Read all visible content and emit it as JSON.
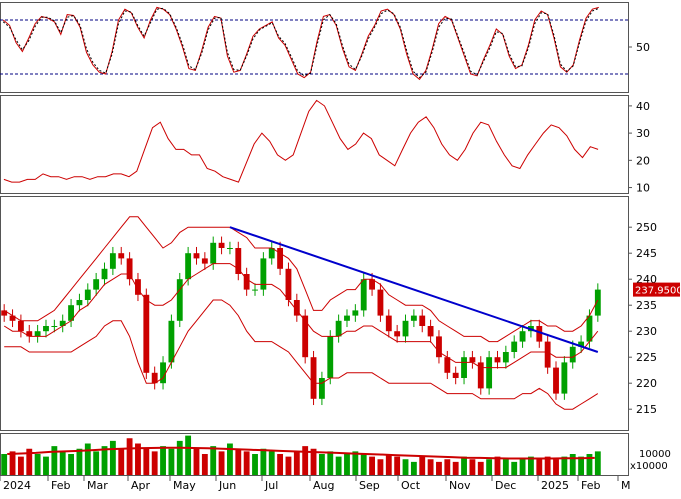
{
  "chart_data": [
    {
      "type": "line",
      "panel": "stochastic",
      "y_ticks": [
        50
      ],
      "ylim": [
        0,
        100
      ],
      "reference_lines": [
        80,
        20
      ],
      "series": [
        {
          "values": [
            80,
            74,
            55,
            45,
            60,
            76,
            84,
            82,
            78,
            64,
            86,
            85,
            72,
            44,
            30,
            22,
            20,
            45,
            80,
            92,
            88,
            72,
            60,
            80,
            94,
            92,
            86,
            70,
            50,
            26,
            24,
            46,
            72,
            84,
            82,
            40,
            22,
            24,
            42,
            62,
            70,
            74,
            78,
            60,
            52,
            36,
            20,
            16,
            22,
            56,
            84,
            86,
            74,
            48,
            28,
            24,
            42,
            62,
            74,
            90,
            92,
            86,
            70,
            42,
            20,
            14,
            24,
            48,
            76,
            84,
            80,
            60,
            40,
            20,
            18,
            36,
            52,
            70,
            64,
            40,
            26,
            30,
            52,
            80,
            90,
            86,
            60,
            28,
            22,
            30,
            58,
            82,
            92,
            94
          ]
        },
        {
          "values": [
            78,
            72,
            58,
            47,
            57,
            73,
            83,
            83,
            79,
            66,
            83,
            85,
            74,
            48,
            33,
            24,
            21,
            42,
            76,
            90,
            89,
            74,
            62,
            77,
            92,
            93,
            87,
            72,
            53,
            29,
            25,
            43,
            69,
            82,
            83,
            44,
            25,
            24,
            40,
            59,
            69,
            73,
            77,
            62,
            54,
            39,
            23,
            18,
            21,
            52,
            80,
            86,
            76,
            51,
            31,
            25,
            40,
            59,
            72,
            87,
            91,
            87,
            72,
            46,
            23,
            16,
            22,
            45,
            72,
            82,
            81,
            62,
            43,
            23,
            19,
            34,
            49,
            67,
            65,
            43,
            28,
            29,
            49,
            76,
            88,
            87,
            63,
            31,
            23,
            29,
            55,
            79,
            90,
            93
          ]
        }
      ],
      "colors": {
        "line": "#cc0000",
        "signal": "#cc0000",
        "reference": "#000080"
      }
    },
    {
      "type": "line",
      "panel": "adx",
      "y_ticks": [
        10,
        20,
        30,
        40
      ],
      "ylim": [
        8,
        44
      ],
      "series": [
        {
          "values": [
            13,
            12,
            12,
            13,
            13,
            15,
            14,
            14,
            13,
            14,
            14,
            13,
            14,
            14,
            15,
            15,
            14,
            16,
            24,
            32,
            34,
            28,
            24,
            24,
            22,
            22,
            17,
            16,
            14,
            13,
            12,
            19,
            26,
            30,
            27,
            22,
            20,
            22,
            30,
            38,
            42,
            40,
            34,
            28,
            24,
            26,
            30,
            28,
            22,
            20,
            18,
            24,
            30,
            34,
            36,
            32,
            26,
            22,
            20,
            24,
            30,
            34,
            33,
            27,
            22,
            18,
            17,
            22,
            26,
            30,
            33,
            32,
            29,
            24,
            21,
            25,
            24
          ]
        }
      ],
      "colors": {
        "line": "#cc0000"
      }
    },
    {
      "type": "candlestick",
      "panel": "price",
      "x_ticks": [
        "2024",
        "Feb",
        "Mar",
        "Apr",
        "May",
        "Jun",
        "Jul",
        "Aug",
        "Sep",
        "Oct",
        "Nov",
        "Dec",
        "2025",
        "Feb",
        "M"
      ],
      "y_ticks": [
        215,
        220,
        225,
        230,
        235,
        240,
        245,
        250
      ],
      "ylim": [
        211,
        256
      ],
      "last_price_label": "237.9500",
      "close": [
        233,
        232,
        230,
        229,
        230,
        231,
        231,
        232,
        235,
        236,
        238,
        240,
        242,
        245,
        244,
        240,
        237,
        222,
        220,
        224,
        232,
        240,
        245,
        244,
        243,
        247,
        246,
        246,
        241,
        238,
        238,
        244,
        246,
        242,
        236,
        233,
        225,
        217,
        221,
        229,
        232,
        233,
        234,
        240,
        238,
        233,
        230,
        229,
        232,
        233,
        231,
        229,
        225,
        222,
        221,
        225,
        224,
        219,
        225,
        224,
        226,
        228,
        230,
        231,
        228,
        223,
        218,
        224,
        227,
        228,
        233,
        238
      ],
      "series": [
        {
          "name": "bollinger_upper",
          "values": [
            234,
            233,
            232,
            232,
            232,
            233,
            234,
            236,
            238,
            240,
            242,
            244,
            246,
            248,
            250,
            252,
            252,
            250,
            248,
            246,
            247,
            249,
            250,
            250,
            250,
            250,
            250,
            250,
            249,
            248,
            246,
            246,
            246,
            245,
            244,
            242,
            238,
            234,
            234,
            236,
            237,
            238,
            238,
            240,
            240,
            239,
            237,
            236,
            235,
            235,
            235,
            234,
            232,
            231,
            230,
            229,
            229,
            229,
            228,
            228,
            229,
            230,
            231,
            232,
            232,
            231,
            231,
            230,
            230,
            231,
            233,
            236
          ]
        },
        {
          "name": "bollinger_middle",
          "values": [
            231,
            230,
            230,
            229,
            229,
            229,
            230,
            231,
            232,
            234,
            235,
            237,
            239,
            240,
            241,
            241,
            238,
            236,
            235,
            235,
            236,
            238,
            240,
            241,
            242,
            243,
            243,
            243,
            242,
            240,
            239,
            239,
            239,
            238,
            236,
            234,
            232,
            230,
            229,
            229,
            229,
            230,
            230,
            231,
            231,
            230,
            229,
            228,
            228,
            228,
            228,
            228,
            226,
            225,
            224,
            224,
            224,
            223,
            223,
            223,
            223,
            224,
            225,
            226,
            226,
            226,
            225,
            225,
            225,
            226,
            228,
            230
          ]
        },
        {
          "name": "bollinger_lower",
          "values": [
            227,
            227,
            227,
            226,
            226,
            226,
            226,
            226,
            226,
            227,
            228,
            229,
            231,
            232,
            232,
            229,
            224,
            220,
            220,
            221,
            224,
            227,
            230,
            232,
            234,
            236,
            236,
            235,
            233,
            230,
            228,
            228,
            228,
            227,
            226,
            224,
            222,
            220,
            220,
            221,
            221,
            222,
            222,
            222,
            222,
            221,
            220,
            220,
            220,
            220,
            220,
            220,
            219,
            218,
            218,
            218,
            218,
            217,
            217,
            217,
            217,
            217,
            218,
            218,
            219,
            218,
            216,
            215,
            215,
            216,
            217,
            218
          ]
        },
        {
          "name": "trendline",
          "values": [
            250,
            226
          ]
        }
      ],
      "colors": {
        "up": "#00a000",
        "down": "#cc0000",
        "band": "#cc0000",
        "trendline": "#0000cc",
        "label_bg": "#cc0000"
      }
    },
    {
      "type": "bar",
      "panel": "volume",
      "y_ticks_label": "10000",
      "multiplier_label": "x10000",
      "ylim": [
        0,
        1.6
      ],
      "values": [
        0.8,
        0.9,
        0.7,
        1.0,
        0.8,
        0.7,
        1.1,
        0.9,
        0.8,
        1.0,
        1.2,
        0.9,
        1.1,
        1.3,
        1.0,
        1.4,
        1.2,
        1.0,
        0.9,
        1.1,
        1.0,
        1.3,
        1.5,
        1.0,
        0.8,
        1.1,
        0.9,
        1.2,
        1.0,
        0.9,
        0.8,
        1.0,
        0.9,
        0.8,
        0.7,
        0.9,
        1.1,
        1.0,
        0.8,
        0.9,
        0.7,
        0.8,
        0.9,
        0.8,
        0.7,
        0.6,
        0.8,
        0.7,
        0.6,
        0.5,
        0.7,
        0.6,
        0.5,
        0.6,
        0.5,
        0.7,
        0.6,
        0.5,
        0.6,
        0.7,
        0.6,
        0.5,
        0.6,
        0.7,
        0.6,
        0.7,
        0.6,
        0.7,
        0.8,
        0.7,
        0.8,
        0.9
      ],
      "ma": [
        0.8,
        0.82,
        0.84,
        0.88,
        0.9,
        0.92,
        0.95,
        0.98,
        1.0,
        1.02,
        1.03,
        1.04,
        1.04,
        1.03,
        1.02,
        1.0,
        0.98,
        0.96,
        0.94,
        0.92,
        0.9,
        0.88,
        0.86,
        0.84,
        0.82,
        0.8,
        0.78,
        0.76,
        0.74,
        0.72,
        0.7,
        0.68,
        0.66,
        0.65,
        0.64,
        0.63,
        0.63,
        0.63,
        0.63,
        0.64,
        0.64,
        0.65
      ],
      "colors": {
        "up": "#00a000",
        "down": "#cc0000",
        "ma": "#cc0000"
      }
    }
  ]
}
